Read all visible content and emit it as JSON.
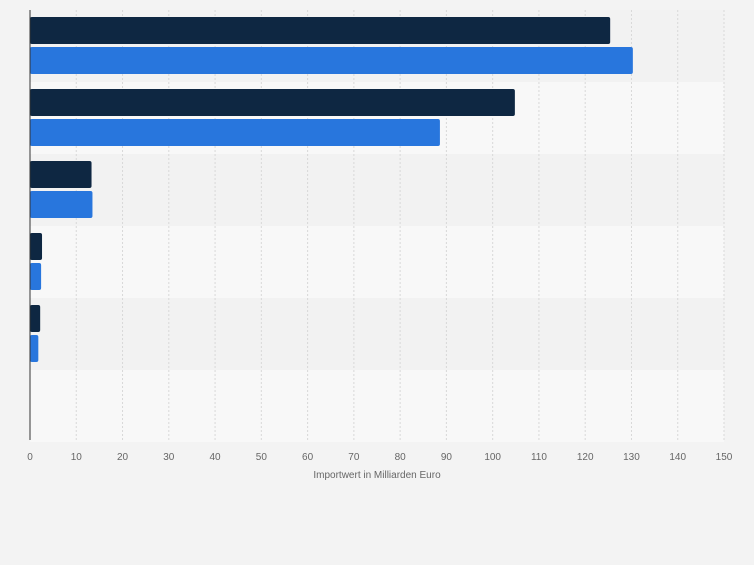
{
  "chart_data": {
    "type": "bar",
    "orientation": "horizontal",
    "categories": [
      "",
      "",
      "",
      "",
      "",
      ""
    ],
    "series": [
      {
        "values": [
          125.4,
          104.8,
          13.3,
          2.6,
          2.2,
          0
        ]
      },
      {
        "values": [
          130.3,
          88.6,
          13.5,
          2.4,
          1.8,
          0
        ]
      }
    ],
    "title": "",
    "xlabel": "Importwert in Milliarden Euro",
    "ylabel": "",
    "xlim": [
      0,
      150
    ],
    "ticks": [
      "0",
      "10",
      "20",
      "30",
      "40",
      "50",
      "60",
      "70",
      "80",
      "90",
      "100",
      "110",
      "120",
      "130",
      "140",
      "150"
    ],
    "grid": true,
    "legend": "none",
    "colors": {
      "series": [
        "#0e2742",
        "#2876dd"
      ],
      "band_odd": "#f2f2f2",
      "band_even": "#f8f8f8",
      "grid": "#d8d8d8",
      "axis": "#333333",
      "tick_text": "#666666"
    }
  }
}
